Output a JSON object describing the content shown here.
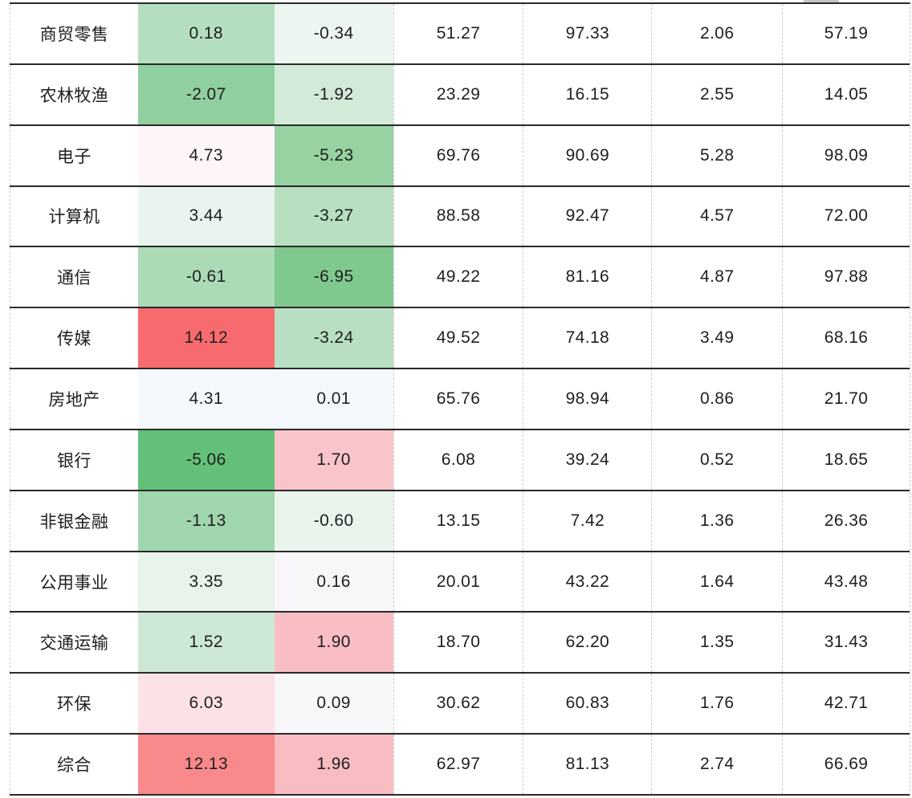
{
  "page": {
    "background": "#ffffff"
  },
  "colors": {
    "row_line": "#2a2a2a",
    "column_divider": "#cccccc",
    "text": "#1f1f1f",
    "scroll_tab": "#c6c6c6"
  },
  "table": {
    "rows": [
      {
        "industry": "商贸零售",
        "cells": [
          {
            "text": "0.18",
            "bg": "#b4dec0"
          },
          {
            "text": "-0.34",
            "bg": "#ecf6f1"
          },
          {
            "text": "51.27"
          },
          {
            "text": "97.33"
          },
          {
            "text": "2.06"
          },
          {
            "text": "57.19"
          }
        ]
      },
      {
        "industry": "农林牧渔",
        "cells": [
          {
            "text": "-2.07",
            "bg": "#90cf9f"
          },
          {
            "text": "-1.92",
            "bg": "#d2ead8"
          },
          {
            "text": "23.29"
          },
          {
            "text": "16.15"
          },
          {
            "text": "2.55"
          },
          {
            "text": "14.05"
          }
        ]
      },
      {
        "industry": "电子",
        "cells": [
          {
            "text": "4.73",
            "bg": "#fdf5f8"
          },
          {
            "text": "-5.23",
            "bg": "#96d2a2"
          },
          {
            "text": "69.76"
          },
          {
            "text": "90.69"
          },
          {
            "text": "5.28"
          },
          {
            "text": "98.09"
          }
        ]
      },
      {
        "industry": "计算机",
        "cells": [
          {
            "text": "3.44",
            "bg": "#eaf4ee"
          },
          {
            "text": "-3.27",
            "bg": "#b7dfc0"
          },
          {
            "text": "88.58"
          },
          {
            "text": "92.47"
          },
          {
            "text": "4.57"
          },
          {
            "text": "72.00"
          }
        ]
      },
      {
        "industry": "通信",
        "cells": [
          {
            "text": "-0.61",
            "bg": "#aadab6"
          },
          {
            "text": "-6.95",
            "bg": "#7fc98e"
          },
          {
            "text": "49.22"
          },
          {
            "text": "81.16"
          },
          {
            "text": "4.87"
          },
          {
            "text": "97.88"
          }
        ]
      },
      {
        "industry": "传媒",
        "cells": [
          {
            "text": "14.12",
            "bg": "#f76b6e"
          },
          {
            "text": "-3.24",
            "bg": "#b8dfc1"
          },
          {
            "text": "49.52"
          },
          {
            "text": "74.18"
          },
          {
            "text": "3.49"
          },
          {
            "text": "68.16"
          }
        ]
      },
      {
        "industry": "房地产",
        "cells": [
          {
            "text": "4.31",
            "bg": "#f5f9fb"
          },
          {
            "text": "0.01",
            "bg": "#f5f8fa"
          },
          {
            "text": "65.76"
          },
          {
            "text": "98.94"
          },
          {
            "text": "0.86"
          },
          {
            "text": "21.70"
          }
        ]
      },
      {
        "industry": "银行",
        "cells": [
          {
            "text": "-5.06",
            "bg": "#63c078"
          },
          {
            "text": "1.70",
            "bg": "#f9c5ca"
          },
          {
            "text": "6.08"
          },
          {
            "text": "39.24"
          },
          {
            "text": "0.52"
          },
          {
            "text": "18.65"
          }
        ]
      },
      {
        "industry": "非银金融",
        "cells": [
          {
            "text": "-1.13",
            "bg": "#a0d6ad"
          },
          {
            "text": "-0.60",
            "bg": "#e9f4ed"
          },
          {
            "text": "13.15"
          },
          {
            "text": "7.42"
          },
          {
            "text": "1.36"
          },
          {
            "text": "26.36"
          }
        ]
      },
      {
        "industry": "公用事业",
        "cells": [
          {
            "text": "3.35",
            "bg": "#e7f3eb"
          },
          {
            "text": "0.16",
            "bg": "#f9f6f9"
          },
          {
            "text": "20.01"
          },
          {
            "text": "43.22"
          },
          {
            "text": "1.64"
          },
          {
            "text": "43.48"
          }
        ]
      },
      {
        "industry": "交通运输",
        "cells": [
          {
            "text": "1.52",
            "bg": "#cde8d4"
          },
          {
            "text": "1.90",
            "bg": "#f9bec4"
          },
          {
            "text": "18.70"
          },
          {
            "text": "62.20"
          },
          {
            "text": "1.35"
          },
          {
            "text": "31.43"
          }
        ]
      },
      {
        "industry": "环保",
        "cells": [
          {
            "text": "6.03",
            "bg": "#fce1e6"
          },
          {
            "text": "0.09",
            "bg": "#f8f7fa"
          },
          {
            "text": "30.62"
          },
          {
            "text": "60.83"
          },
          {
            "text": "1.76"
          },
          {
            "text": "42.71"
          }
        ]
      },
      {
        "industry": "综合",
        "cells": [
          {
            "text": "12.13",
            "bg": "#f98a8c"
          },
          {
            "text": "1.96",
            "bg": "#f8bcc2"
          },
          {
            "text": "62.97"
          },
          {
            "text": "81.13"
          },
          {
            "text": "2.74"
          },
          {
            "text": "66.69"
          }
        ]
      }
    ]
  },
  "chart_data": {
    "type": "heatmap",
    "title": "",
    "categories": [
      "商贸零售",
      "农林牧渔",
      "电子",
      "计算机",
      "通信",
      "传媒",
      "房地产",
      "银行",
      "非银金融",
      "公用事业",
      "交通运输",
      "环保",
      "综合"
    ],
    "series": [
      {
        "name": "col_1_conditional",
        "values": [
          0.18,
          -2.07,
          4.73,
          3.44,
          -0.61,
          14.12,
          4.31,
          -5.06,
          -1.13,
          3.35,
          1.52,
          6.03,
          12.13
        ]
      },
      {
        "name": "col_2_conditional",
        "values": [
          -0.34,
          -1.92,
          -5.23,
          -3.27,
          -6.95,
          -3.24,
          0.01,
          1.7,
          -0.6,
          0.16,
          1.9,
          0.09,
          1.96
        ]
      },
      {
        "name": "col_3",
        "values": [
          51.27,
          23.29,
          69.76,
          88.58,
          49.22,
          49.52,
          65.76,
          6.08,
          13.15,
          20.01,
          18.7,
          30.62,
          62.97
        ]
      },
      {
        "name": "col_4",
        "values": [
          97.33,
          16.15,
          90.69,
          92.47,
          81.16,
          74.18,
          98.94,
          39.24,
          7.42,
          43.22,
          62.2,
          60.83,
          81.13
        ]
      },
      {
        "name": "col_5",
        "values": [
          2.06,
          2.55,
          5.28,
          4.57,
          4.87,
          3.49,
          0.86,
          0.52,
          1.36,
          1.64,
          1.35,
          1.76,
          2.74
        ]
      },
      {
        "name": "col_6",
        "values": [
          57.19,
          14.05,
          98.09,
          72.0,
          97.88,
          68.16,
          21.7,
          18.65,
          26.36,
          43.48,
          31.43,
          42.71,
          66.69
        ]
      }
    ],
    "layout_hints": {
      "grid": "solid dark horizontal row lines, dashed light-gray column dividers",
      "conditional_format": "first two value columns: green fill for negative values, red/pink fill for high positive values, white near midpoint",
      "legend": "none",
      "header_row": "not visible (cropped above)"
    }
  }
}
